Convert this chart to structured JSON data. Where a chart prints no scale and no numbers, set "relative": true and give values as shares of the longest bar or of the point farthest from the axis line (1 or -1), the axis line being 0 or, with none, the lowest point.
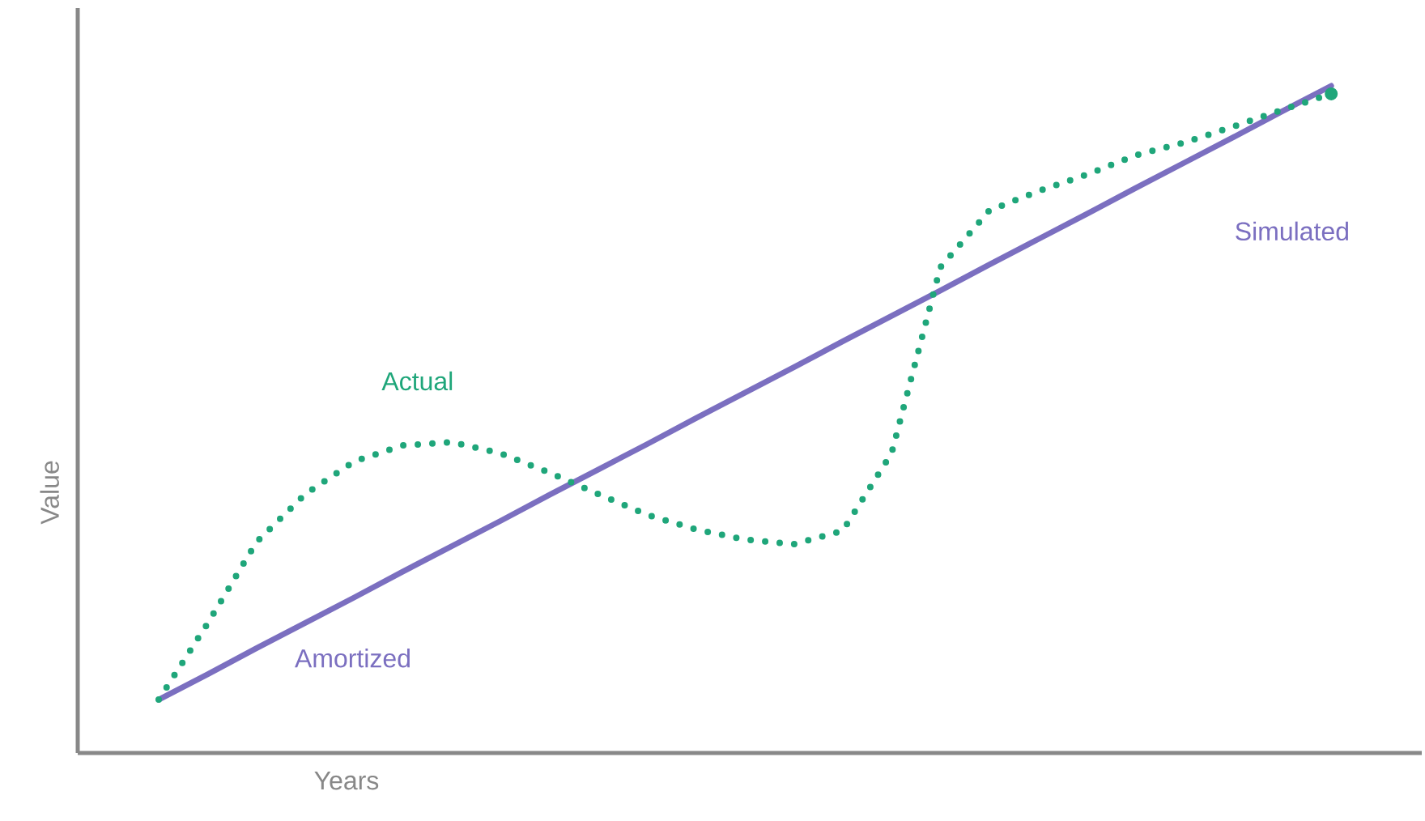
{
  "chart_data": {
    "type": "line",
    "relative": true,
    "xlabel": "Years",
    "ylabel": "Value",
    "categories": [
      null,
      null,
      null,
      null,
      null,
      null,
      null,
      null,
      null,
      null,
      null,
      null,
      null,
      null,
      null,
      null,
      null,
      null,
      null,
      null,
      null,
      null,
      null,
      null,
      null
    ],
    "series": [
      {
        "name": "Actual",
        "color": "#1fa67a",
        "line_style": "dotted",
        "values": [
          0.08,
          0.194,
          0.316,
          0.388,
          0.437,
          0.461,
          0.466,
          0.449,
          0.42,
          0.388,
          0.357,
          0.335,
          0.32,
          0.313,
          0.333,
          0.449,
          0.728,
          0.813,
          0.842,
          0.867,
          0.896,
          0.915,
          0.939,
          0.964,
          0.988
        ]
      },
      {
        "name": "Simulated",
        "color": "#7b6fc0",
        "line_style": "solid",
        "values": [
          0.08,
          0.118,
          0.157,
          0.195,
          0.233,
          0.272,
          0.31,
          0.348,
          0.387,
          0.425,
          0.463,
          0.502,
          0.54,
          0.578,
          0.617,
          0.655,
          0.693,
          0.732,
          0.77,
          0.808,
          0.847,
          0.885,
          0.923,
          0.962,
          1.0
        ]
      }
    ],
    "annotations": [
      "Amortized"
    ],
    "marker": "none"
  }
}
